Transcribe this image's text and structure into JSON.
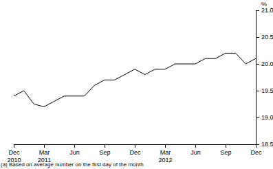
{
  "chart_data": {
    "type": "line",
    "ylabel": "%",
    "footnote": "(a) Based on average number on the first day of the month",
    "categories": [
      "Dec 2010",
      null,
      null,
      "Mar 2011",
      null,
      null,
      "Jun",
      null,
      null,
      "Sep",
      null,
      null,
      "Dec",
      null,
      null,
      "Mar 2012",
      null,
      null,
      "Jun",
      null,
      null,
      "Sep",
      null,
      null,
      "Dec"
    ],
    "values": [
      19.4,
      19.5,
      19.25,
      19.2,
      19.3,
      19.4,
      19.4,
      19.4,
      19.6,
      19.7,
      19.7,
      19.8,
      19.9,
      19.8,
      19.9,
      19.9,
      20.0,
      20.0,
      20.0,
      20.1,
      20.1,
      20.2,
      20.2,
      20.0,
      20.1
    ],
    "color": "#000000",
    "ylim": [
      18.5,
      21.0
    ],
    "yticks": [
      18.5,
      {
        "value": 19,
        "label": "19.0"
      },
      19.5,
      {
        "value": 20,
        "label": "20.0"
      },
      20.5,
      {
        "value": 21,
        "label": "21.0"
      }
    ],
    "grid": false
  }
}
